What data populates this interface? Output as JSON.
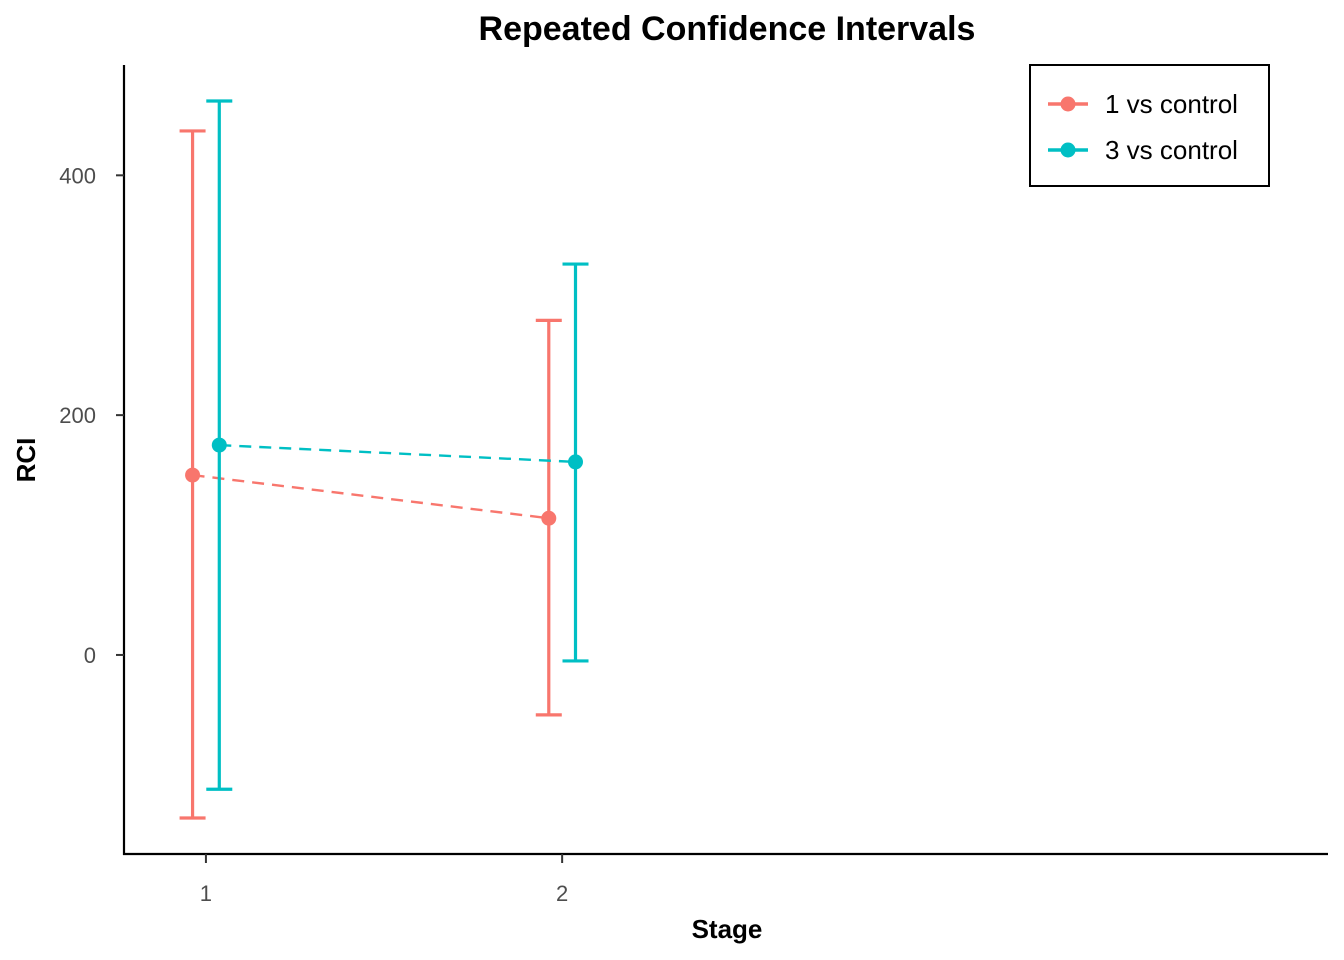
{
  "chart_data": {
    "type": "line",
    "title": "Repeated Confidence Intervals",
    "xlabel": "Stage",
    "ylabel": "RCI",
    "x_ticks": [
      1,
      2
    ],
    "y_ticks": [
      0,
      200,
      400
    ],
    "xlim": [
      0.77,
      4.15
    ],
    "ylim": [
      -166,
      492
    ],
    "grid": false,
    "legend_position": "top-right",
    "series": [
      {
        "name": "1 vs control",
        "color": "#F8766D",
        "line_style": "dashed",
        "points": [
          {
            "stage": 1,
            "estimate": 150,
            "lower": -136,
            "upper": 437
          },
          {
            "stage": 2,
            "estimate": 114,
            "lower": -50,
            "upper": 279
          }
        ]
      },
      {
        "name": "3 vs control",
        "color": "#00BFC4",
        "line_style": "dashed",
        "points": [
          {
            "stage": 1,
            "estimate": 175,
            "lower": -112,
            "upper": 462
          },
          {
            "stage": 2,
            "estimate": 161,
            "lower": -5,
            "upper": 326
          }
        ]
      }
    ]
  }
}
